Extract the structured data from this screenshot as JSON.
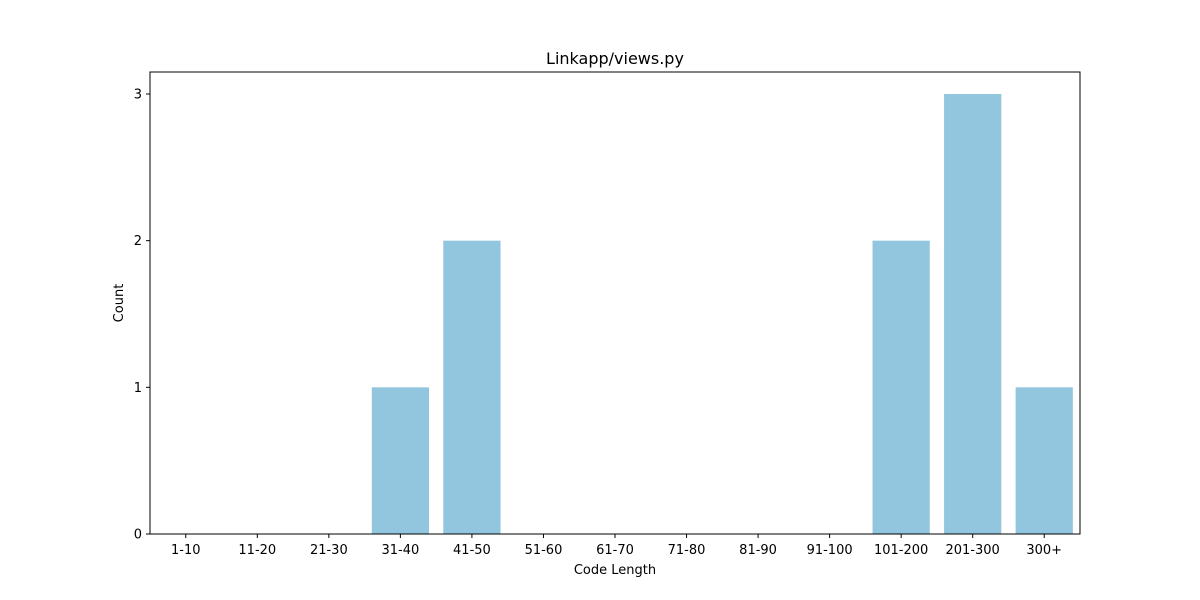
{
  "chart_data": {
    "type": "bar",
    "title": "Linkapp/views.py",
    "xlabel": "Code Length",
    "ylabel": "Count",
    "categories": [
      "1-10",
      "11-20",
      "21-30",
      "31-40",
      "41-50",
      "51-60",
      "61-70",
      "71-80",
      "81-90",
      "91-100",
      "101-200",
      "201-300",
      "300+"
    ],
    "values": [
      0,
      0,
      0,
      1,
      2,
      0,
      0,
      0,
      0,
      0,
      2,
      3,
      1
    ],
    "ylim": [
      0,
      3.15
    ],
    "yticks": [
      0,
      1,
      2,
      3
    ],
    "grid": false,
    "bar_color": "#92c5de"
  }
}
